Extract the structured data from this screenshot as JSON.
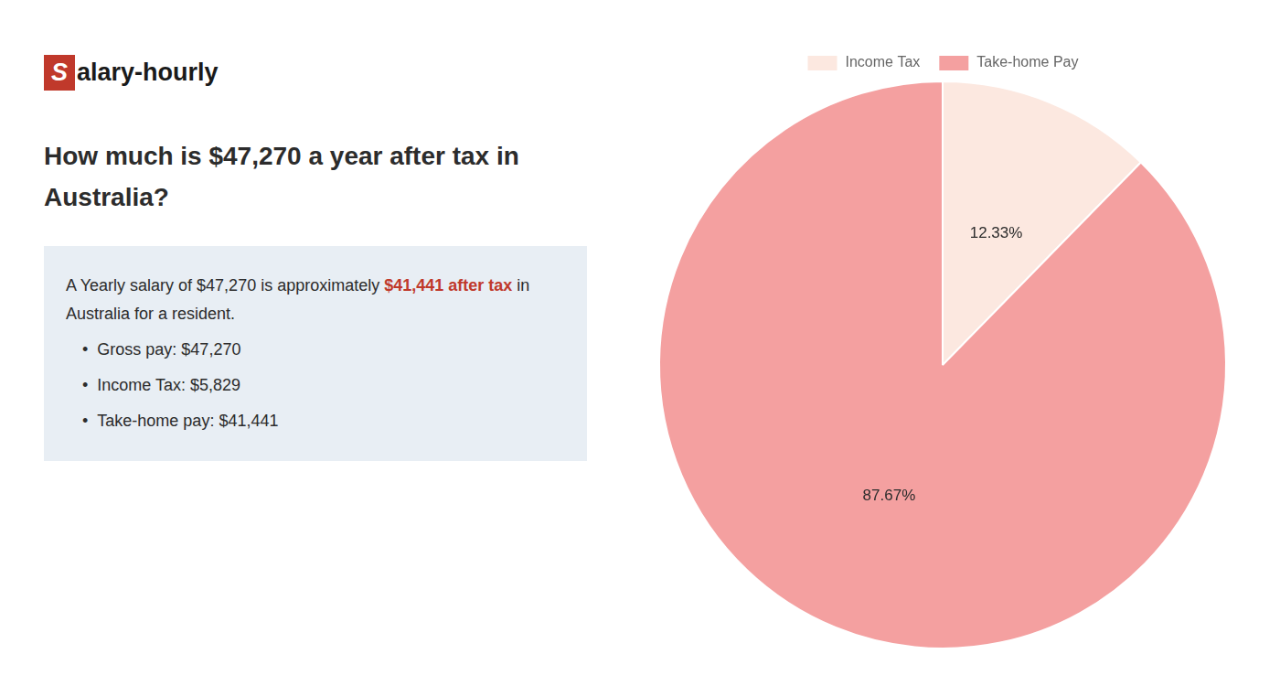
{
  "chart_data": {
    "type": "pie",
    "title": [
      "How much is $47,270 a year after tax in",
      "Australia?"
    ],
    "annotations": [
      [
        {
          "text": "S",
          "color": "#c0392b"
        },
        {
          "text": "alary-hourly"
        }
      ],
      [
        {
          "text": "A Yearly salary of $47,270 is approximately "
        },
        {
          "text": "$41,441 after tax",
          "color": "#c0392b"
        },
        {
          "text": " in"
        }
      ],
      [
        {
          "text": "Australia for a resident."
        }
      ],
      [
        {
          "text": "•"
        },
        {
          "text": "Gross pay: $47,270"
        }
      ],
      [
        {
          "text": "•"
        },
        {
          "text": "Income Tax: $5,829"
        }
      ],
      [
        {
          "text": "•"
        },
        {
          "text": "Take-home pay: $41,441"
        }
      ]
    ],
    "categories": [
      "Income Tax",
      "Take-home Pay"
    ],
    "values": [
      12.33,
      87.67
    ],
    "value_labels": [
      "12.33%",
      "87.67%"
    ],
    "colors": [
      "#fce8e0",
      "#f4a0a0"
    ],
    "data_labels": true,
    "legend": "top"
  }
}
